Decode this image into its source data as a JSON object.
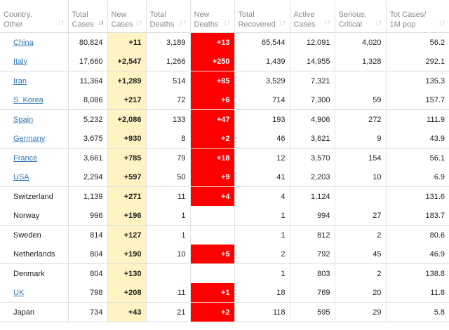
{
  "headers": [
    {
      "label": "Country,\nOther",
      "name": "col-country",
      "sort_icon": "sort-icon"
    },
    {
      "label": "Total\nCases",
      "name": "col-total-cases",
      "sort_icon": "sort-desc-icon"
    },
    {
      "label": "New\nCases",
      "name": "col-new-cases",
      "sort_icon": "sort-icon"
    },
    {
      "label": "Total\nDeaths",
      "name": "col-total-deaths",
      "sort_icon": "sort-icon"
    },
    {
      "label": "New\nDeaths",
      "name": "col-new-deaths",
      "sort_icon": "sort-icon"
    },
    {
      "label": "Total\nRecovered",
      "name": "col-total-recovered",
      "sort_icon": "sort-icon"
    },
    {
      "label": "Active\nCases",
      "name": "col-active-cases",
      "sort_icon": "sort-icon"
    },
    {
      "label": "Serious,\nCritical",
      "name": "col-serious-critical",
      "sort_icon": "sort-icon"
    },
    {
      "label": "Tot Cases/\n1M pop",
      "name": "col-cases-per-million",
      "sort_icon": "sort-icon"
    }
  ],
  "colors": {
    "new_cases_bg": "#fff3c4",
    "new_deaths_bg": "#ff0000",
    "link": "#337ab7"
  },
  "rows": [
    {
      "country": "China",
      "link": true,
      "total_cases": "80,824",
      "new_cases": "+11",
      "total_deaths": "3,189",
      "new_deaths": "+13",
      "total_recovered": "65,544",
      "active_cases": "12,091",
      "serious_critical": "4,020",
      "per_million": "56.2"
    },
    {
      "country": "Italy",
      "link": true,
      "total_cases": "17,660",
      "new_cases": "+2,547",
      "total_deaths": "1,266",
      "new_deaths": "+250",
      "total_recovered": "1,439",
      "active_cases": "14,955",
      "serious_critical": "1,328",
      "per_million": "292.1"
    },
    {
      "country": "Iran",
      "link": true,
      "total_cases": "11,364",
      "new_cases": "+1,289",
      "total_deaths": "514",
      "new_deaths": "+85",
      "total_recovered": "3,529",
      "active_cases": "7,321",
      "serious_critical": "",
      "per_million": "135.3"
    },
    {
      "country": "S. Korea",
      "link": true,
      "total_cases": "8,086",
      "new_cases": "+217",
      "total_deaths": "72",
      "new_deaths": "+6",
      "total_recovered": "714",
      "active_cases": "7,300",
      "serious_critical": "59",
      "per_million": "157.7"
    },
    {
      "country": "Spain",
      "link": true,
      "total_cases": "5,232",
      "new_cases": "+2,086",
      "total_deaths": "133",
      "new_deaths": "+47",
      "total_recovered": "193",
      "active_cases": "4,906",
      "serious_critical": "272",
      "per_million": "111.9"
    },
    {
      "country": "Germany",
      "link": true,
      "total_cases": "3,675",
      "new_cases": "+930",
      "total_deaths": "8",
      "new_deaths": "+2",
      "total_recovered": "46",
      "active_cases": "3,621",
      "serious_critical": "9",
      "per_million": "43.9"
    },
    {
      "country": "France",
      "link": true,
      "total_cases": "3,661",
      "new_cases": "+785",
      "total_deaths": "79",
      "new_deaths": "+18",
      "total_recovered": "12",
      "active_cases": "3,570",
      "serious_critical": "154",
      "per_million": "56.1"
    },
    {
      "country": "USA",
      "link": true,
      "total_cases": "2,294",
      "new_cases": "+597",
      "total_deaths": "50",
      "new_deaths": "+9",
      "total_recovered": "41",
      "active_cases": "2,203",
      "serious_critical": "10",
      "per_million": "6.9"
    },
    {
      "country": "Switzerland",
      "link": false,
      "total_cases": "1,139",
      "new_cases": "+271",
      "total_deaths": "11",
      "new_deaths": "+4",
      "total_recovered": "4",
      "active_cases": "1,124",
      "serious_critical": "",
      "per_million": "131.6"
    },
    {
      "country": "Norway",
      "link": false,
      "total_cases": "996",
      "new_cases": "+196",
      "total_deaths": "1",
      "new_deaths": "",
      "total_recovered": "1",
      "active_cases": "994",
      "serious_critical": "27",
      "per_million": "183.7"
    },
    {
      "country": "Sweden",
      "link": false,
      "total_cases": "814",
      "new_cases": "+127",
      "total_deaths": "1",
      "new_deaths": "",
      "total_recovered": "1",
      "active_cases": "812",
      "serious_critical": "2",
      "per_million": "80.6"
    },
    {
      "country": "Netherlands",
      "link": false,
      "total_cases": "804",
      "new_cases": "+190",
      "total_deaths": "10",
      "new_deaths": "+5",
      "total_recovered": "2",
      "active_cases": "792",
      "serious_critical": "45",
      "per_million": "46.9"
    },
    {
      "country": "Denmark",
      "link": false,
      "total_cases": "804",
      "new_cases": "+130",
      "total_deaths": "",
      "new_deaths": "",
      "total_recovered": "1",
      "active_cases": "803",
      "serious_critical": "2",
      "per_million": "138.8"
    },
    {
      "country": "UK",
      "link": true,
      "total_cases": "798",
      "new_cases": "+208",
      "total_deaths": "11",
      "new_deaths": "+1",
      "total_recovered": "18",
      "active_cases": "769",
      "serious_critical": "20",
      "per_million": "11.8"
    },
    {
      "country": "Japan",
      "link": false,
      "total_cases": "734",
      "new_cases": "+43",
      "total_deaths": "21",
      "new_deaths": "+2",
      "total_recovered": "118",
      "active_cases": "595",
      "serious_critical": "29",
      "per_million": "5.8"
    }
  ]
}
